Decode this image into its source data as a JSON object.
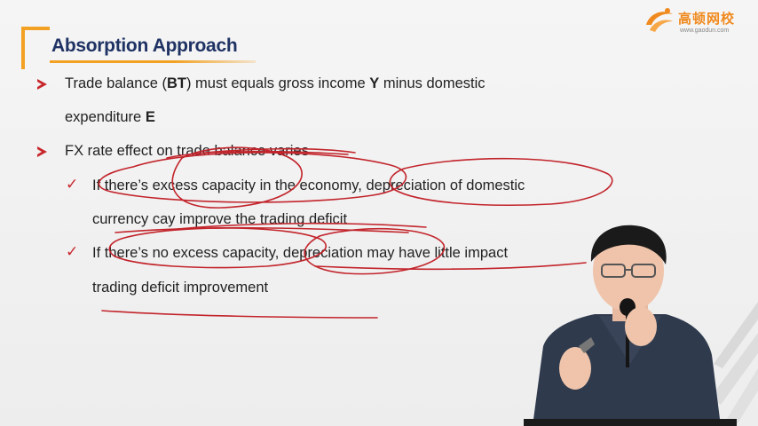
{
  "slide": {
    "title": "Absorption Approach",
    "bullets": [
      {
        "text_parts": [
          "Trade balance (",
          "BT",
          ") must equals gross income ",
          "Y",
          " minus domestic"
        ],
        "continuation_parts": [
          "expenditure ",
          "E"
        ]
      },
      {
        "text": "FX rate effect on trade balance varies"
      }
    ],
    "sub_bullets": [
      {
        "line1": "If there’s excess capacity in the economy, depreciation of domestic",
        "line2": "currency cay improve the trading deficit"
      },
      {
        "line1": "If there’s no excess capacity, depreciation may have little impact",
        "line2": "trading deficit improvement"
      }
    ]
  },
  "logo": {
    "name": "高顿网校",
    "url": "www.gaodun.com",
    "accent": "#f08a1e"
  },
  "colors": {
    "title": "#1f3264",
    "accent_orange": "#f2a122",
    "bullet_red": "#c8272c",
    "ink": "#c2242b"
  },
  "icons": {
    "bullet": "red-arrow-bullet-icon",
    "sub_bullet": "red-checkmark-icon"
  }
}
